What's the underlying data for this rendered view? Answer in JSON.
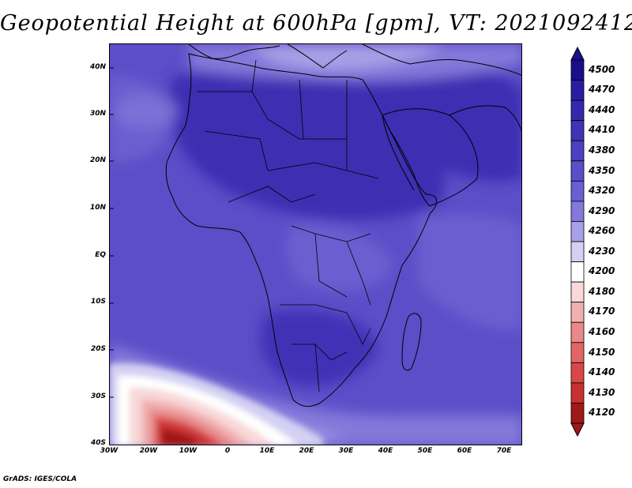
{
  "title": "Geopotential Height at 600hPa [gpm], VT: 2021092412",
  "credit": "GrADS: IGES/COLA",
  "map": {
    "lat_labels": [
      "40N",
      "30N",
      "20N",
      "10N",
      "EQ",
      "10S",
      "20S",
      "30S",
      "40S"
    ],
    "lon_labels": [
      "30W",
      "20W",
      "10W",
      "0",
      "10E",
      "20E",
      "30E",
      "40E",
      "50E",
      "60E",
      "70E"
    ]
  },
  "colorbar": {
    "levels": [
      "4500",
      "4470",
      "4440",
      "4410",
      "4380",
      "4350",
      "4320",
      "4290",
      "4260",
      "4230",
      "4200",
      "4180",
      "4170",
      "4160",
      "4150",
      "4140",
      "4130",
      "4120"
    ],
    "colors": [
      "#1a0f8a",
      "#2a1ea0",
      "#3528ad",
      "#4133b6",
      "#4d40c0",
      "#5b4ec8",
      "#6a5fd0",
      "#8478da",
      "#a8a0e6",
      "#d4d0f2",
      "#ffffff",
      "#f8d8d8",
      "#f0b0b0",
      "#e88888",
      "#e06666",
      "#d84848",
      "#c83030",
      "#a01818"
    ]
  }
}
